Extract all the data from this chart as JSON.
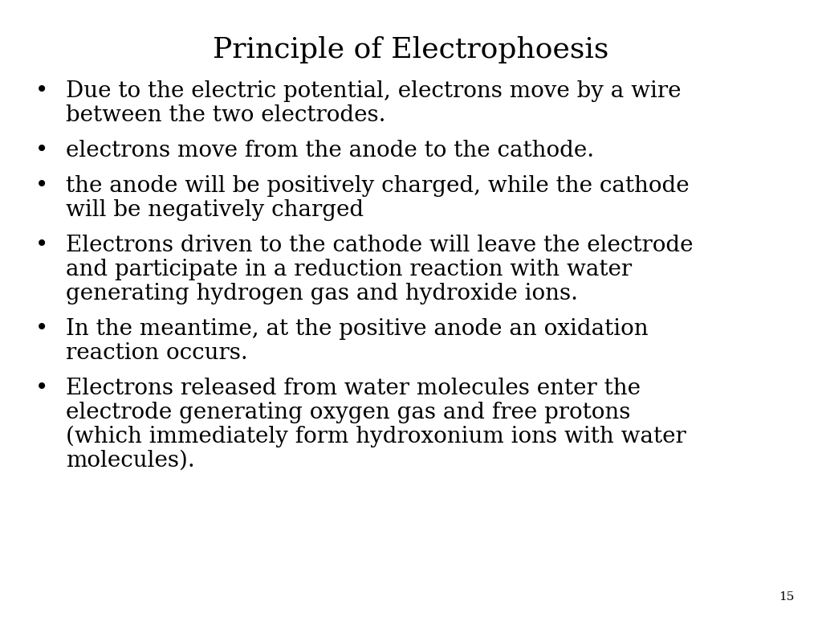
{
  "title": "Principle of Electrophoesis",
  "title_fontsize": 26,
  "bullet_fontsize": 20,
  "page_number": "15",
  "page_number_fontsize": 11,
  "background_color": "#ffffff",
  "text_color": "#000000",
  "bullets": [
    "Due to the electric potential, electrons move by a wire\nbetween the two electrodes.",
    "electrons move from the anode to the cathode.",
    "the anode will be positively charged, while the cathode\nwill be negatively charged",
    "Electrons driven to the cathode will leave the electrode\nand participate in a reduction reaction with water\ngenerating hydrogen gas and hydroxide ions.",
    "In the meantime, at the positive anode an oxidation\nreaction occurs.",
    "Electrons released from water molecules enter the\nelectrode generating oxygen gas and free protons\n(which immediately form hydroxonium ions with water\nmolecules)."
  ]
}
